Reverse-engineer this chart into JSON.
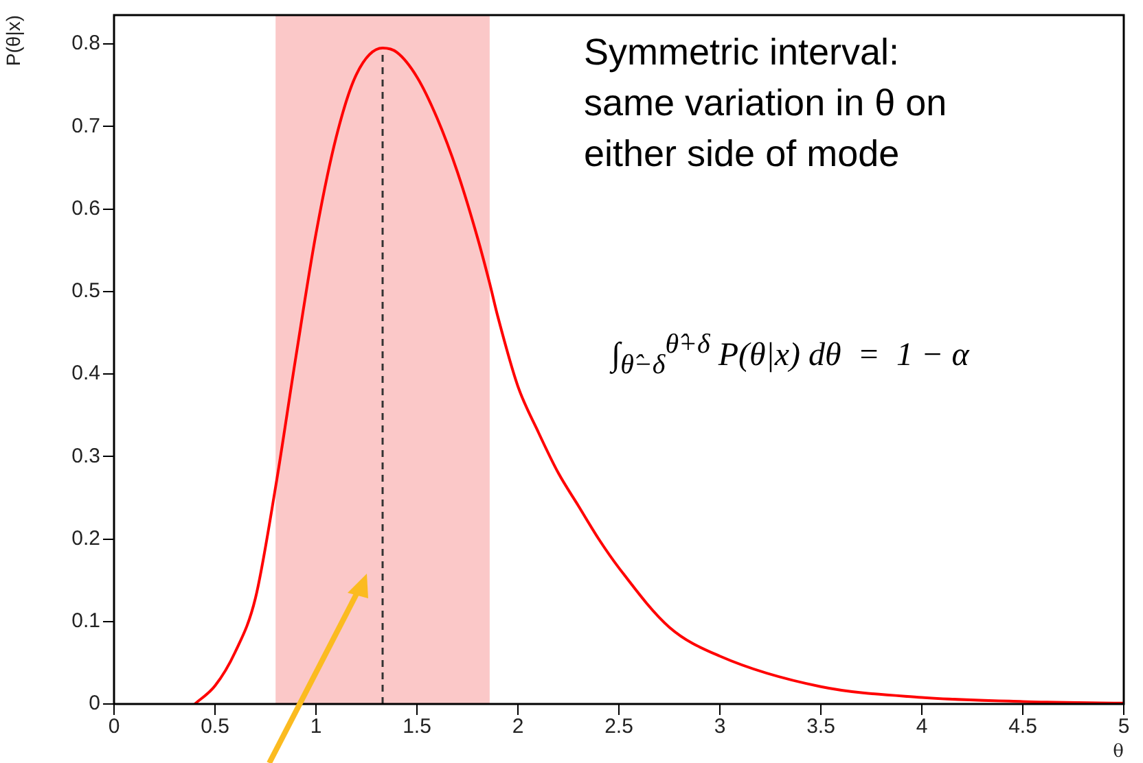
{
  "chart_data": {
    "type": "line",
    "xlabel": "θ",
    "ylabel": "P(θ|x)",
    "xlim": [
      0,
      5
    ],
    "ylim": [
      0,
      0.835
    ],
    "xticks": [
      0,
      0.5,
      1,
      1.5,
      2,
      2.5,
      3,
      3.5,
      4,
      4.5,
      5
    ],
    "yticks": [
      0,
      0.1,
      0.2,
      0.3,
      0.4,
      0.5,
      0.6,
      0.7,
      0.8
    ],
    "grid": false,
    "legend": false,
    "marker": "none",
    "line_style": "solid",
    "series": [
      {
        "color": "#ff0000",
        "x": [
          0.4,
          0.5,
          0.6,
          0.7,
          0.8,
          0.9,
          1.0,
          1.1,
          1.2,
          1.33,
          1.4,
          1.5,
          1.6,
          1.7,
          1.8,
          1.86,
          1.9,
          2.0,
          2.1,
          2.2,
          2.3,
          2.4,
          2.5,
          2.75,
          3.0,
          3.5,
          4.0,
          4.5,
          5.0
        ],
        "values": [
          0,
          0.022,
          0.063,
          0.128,
          0.263,
          0.42,
          0.57,
          0.687,
          0.763,
          0.795,
          0.79,
          0.76,
          0.71,
          0.645,
          0.565,
          0.51,
          0.47,
          0.385,
          0.33,
          0.28,
          0.24,
          0.2,
          0.165,
          0.093,
          0.058,
          0.021,
          0.008,
          0.003,
          0.001
        ]
      }
    ],
    "bands": [
      {
        "axis": "x",
        "from": 0.8,
        "to": 1.86,
        "color": "#fbc8c8"
      }
    ],
    "ref_lines": [
      {
        "axis": "x",
        "value": 1.33,
        "color": "#333333",
        "line_style": "dashed"
      }
    ],
    "annotations": [
      "Symmetric interval:\nsame variation in θ on\neither side of mode",
      "∫$_{θ̂−δ}$$^{θ̂+δ}$ P(θ|x) dθ  =  1 − α"
    ]
  }
}
